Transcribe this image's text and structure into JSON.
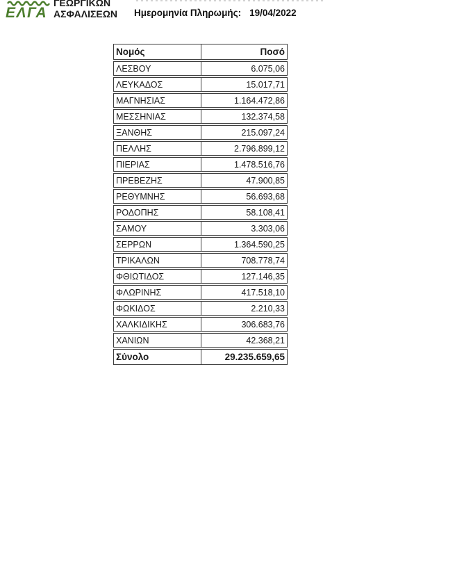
{
  "header": {
    "logo": {
      "acronym": "ΕΛΓΑ",
      "org_line1": "ΓΕΩΡΓΙΚΩΝ",
      "org_line2": "ΑΣΦΑΛΙΣΕΩΝ",
      "green": "#4c7e2d"
    },
    "payment_date_label": "Ημερομηνία Πληρωμής:",
    "payment_date_value": "19/04/2022"
  },
  "table": {
    "columns": {
      "name": "Νομός",
      "amount": "Ποσό"
    },
    "rows": [
      {
        "name": "ΛΕΣΒΟΥ",
        "amount": "6.075,06"
      },
      {
        "name": "ΛΕΥΚΑΔΟΣ",
        "amount": "15.017,71"
      },
      {
        "name": "ΜΑΓΝΗΣΙΑΣ",
        "amount": "1.164.472,86"
      },
      {
        "name": "ΜΕΣΣΗΝΙΑΣ",
        "amount": "132.374,58"
      },
      {
        "name": "ΞΑΝΘΗΣ",
        "amount": "215.097,24"
      },
      {
        "name": "ΠΕΛΛΗΣ",
        "amount": "2.796.899,12"
      },
      {
        "name": "ΠΙΕΡΙΑΣ",
        "amount": "1.478.516,76"
      },
      {
        "name": "ΠΡΕΒΕΖΗΣ",
        "amount": "47.900,85"
      },
      {
        "name": "ΡΕΘΥΜΝΗΣ",
        "amount": "56.693,68"
      },
      {
        "name": "ΡΟΔΟΠΗΣ",
        "amount": "58.108,41"
      },
      {
        "name": "ΣΑΜΟΥ",
        "amount": "3.303,06"
      },
      {
        "name": "ΣΕΡΡΩΝ",
        "amount": "1.364.590,25"
      },
      {
        "name": "ΤΡΙΚΑΛΩΝ",
        "amount": "708.778,74"
      },
      {
        "name": "ΦΘΙΩΤΙΔΟΣ",
        "amount": "127.146,35"
      },
      {
        "name": "ΦΛΩΡΙΝΗΣ",
        "amount": "417.518,10"
      },
      {
        "name": "ΦΩΚΙΔΟΣ",
        "amount": "2.210,33"
      },
      {
        "name": "ΧΑΛΚΙΔΙΚΗΣ",
        "amount": "306.683,76"
      },
      {
        "name": "ΧΑΝΙΩΝ",
        "amount": "42.368,21"
      }
    ],
    "total": {
      "label": "Σύνολο",
      "amount": "29.235.659,65"
    }
  }
}
